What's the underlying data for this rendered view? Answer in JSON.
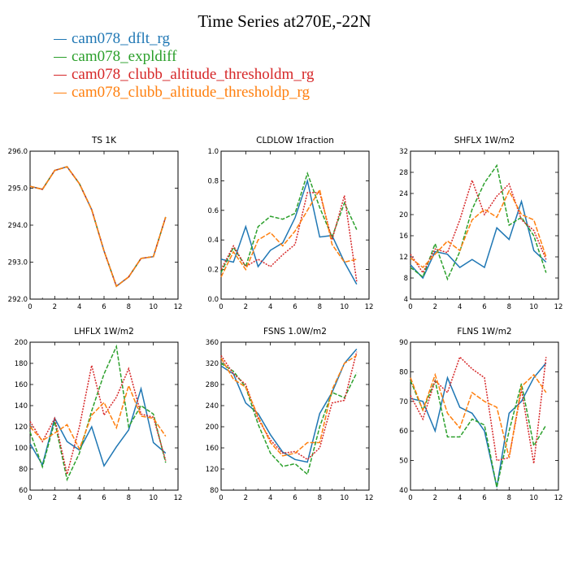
{
  "title": "Time Series at270E,-22N",
  "legend": [
    {
      "label": "cam078_dflt_rg",
      "color": "#1f77b4"
    },
    {
      "label": "cam078_expldiff",
      "color": "#2ca02c"
    },
    {
      "label": "cam078_clubb_altitude_thresholdm_rg",
      "color": "#d62728"
    },
    {
      "label": "cam078_clubb_altitude_thresholdp_rg",
      "color": "#ff7f0e"
    }
  ],
  "chart_data": [
    {
      "type": "line",
      "title": "TS   1K",
      "x": [
        0,
        1,
        2,
        3,
        4,
        5,
        6,
        7,
        8,
        9,
        10,
        11
      ],
      "xlim": [
        0,
        12
      ],
      "xticks": [
        0,
        2,
        4,
        6,
        8,
        10,
        12
      ],
      "ylim": [
        292.0,
        296.0
      ],
      "yticks": [
        292.0,
        293.0,
        294.0,
        295.0,
        296.0
      ],
      "ytick_labels": [
        "292.0",
        "293.0",
        "294.0",
        "295.0",
        "296.0"
      ],
      "series": [
        {
          "name": "cam078_dflt_rg",
          "values": [
            295.05,
            294.97,
            295.48,
            295.58,
            295.12,
            294.42,
            293.3,
            292.35,
            292.6,
            293.1,
            293.15,
            294.22
          ]
        },
        {
          "name": "cam078_expldiff",
          "values": [
            295.05,
            294.97,
            295.48,
            295.58,
            295.12,
            294.42,
            293.3,
            292.35,
            292.6,
            293.1,
            293.15,
            294.22
          ]
        },
        {
          "name": "cam078_clubb_altitude_thresholdm_rg",
          "values": [
            295.05,
            294.97,
            295.48,
            295.58,
            295.12,
            294.42,
            293.3,
            292.35,
            292.6,
            293.1,
            293.15,
            294.22
          ]
        },
        {
          "name": "cam078_clubb_altitude_thresholdp_rg",
          "values": [
            295.05,
            294.97,
            295.48,
            295.58,
            295.12,
            294.42,
            293.3,
            292.35,
            292.6,
            293.1,
            293.15,
            294.22
          ]
        }
      ]
    },
    {
      "type": "line",
      "title": "CLDLOW   1fraction",
      "x": [
        0,
        1,
        2,
        3,
        4,
        5,
        6,
        7,
        8,
        9,
        10,
        11
      ],
      "xlim": [
        0,
        12
      ],
      "xticks": [
        0,
        2,
        4,
        6,
        8,
        10,
        12
      ],
      "ylim": [
        0.0,
        1.0
      ],
      "yticks": [
        0.0,
        0.2,
        0.4,
        0.6,
        0.8,
        1.0
      ],
      "ytick_labels": [
        "0.0",
        "0.2",
        "0.4",
        "0.6",
        "0.8",
        "1.0"
      ],
      "series": [
        {
          "name": "cam078_dflt_rg",
          "values": [
            0.27,
            0.25,
            0.49,
            0.22,
            0.33,
            0.38,
            0.55,
            0.8,
            0.42,
            0.43,
            0.25,
            0.1
          ]
        },
        {
          "name": "cam078_expldiff",
          "values": [
            0.18,
            0.35,
            0.22,
            0.49,
            0.56,
            0.54,
            0.58,
            0.85,
            0.62,
            0.42,
            0.65,
            0.47
          ]
        },
        {
          "name": "cam078_clubb_altitude_thresholdm_rg",
          "values": [
            0.2,
            0.36,
            0.22,
            0.27,
            0.22,
            0.3,
            0.37,
            0.72,
            0.72,
            0.4,
            0.7,
            0.12
          ]
        },
        {
          "name": "cam078_clubb_altitude_thresholdp_rg",
          "values": [
            0.15,
            0.32,
            0.2,
            0.4,
            0.45,
            0.36,
            0.46,
            0.6,
            0.74,
            0.37,
            0.25,
            0.27
          ]
        }
      ]
    },
    {
      "type": "line",
      "title": "SHFLX   1W/m2",
      "x": [
        0,
        1,
        2,
        3,
        4,
        5,
        6,
        7,
        8,
        9,
        10,
        11
      ],
      "xlim": [
        0,
        12
      ],
      "xticks": [
        0,
        2,
        4,
        6,
        8,
        10,
        12
      ],
      "ylim": [
        4,
        32
      ],
      "yticks": [
        4,
        8,
        12,
        16,
        20,
        24,
        28,
        32
      ],
      "ytick_labels": [
        "4",
        "8",
        "12",
        "16",
        "20",
        "24",
        "28",
        "32"
      ],
      "series": [
        {
          "name": "cam078_dflt_rg",
          "values": [
            10.5,
            8,
            13,
            12.5,
            10,
            11.5,
            10,
            17.5,
            15.3,
            22.5,
            13.2,
            11
          ]
        },
        {
          "name": "cam078_expldiff",
          "values": [
            10,
            8.2,
            14.5,
            7.8,
            13,
            21,
            26,
            29.3,
            18,
            19.5,
            16,
            9
          ]
        },
        {
          "name": "cam078_clubb_altitude_thresholdm_rg",
          "values": [
            12.5,
            9,
            13.5,
            12.8,
            19,
            26.5,
            20,
            23.5,
            25.8,
            19,
            17,
            11.5
          ]
        },
        {
          "name": "cam078_clubb_altitude_thresholdp_rg",
          "values": [
            11.8,
            10,
            12.5,
            15,
            13.2,
            19,
            21,
            19.5,
            24.5,
            20,
            19,
            12
          ]
        }
      ]
    },
    {
      "type": "line",
      "title": "LHFLX   1W/m2",
      "x": [
        0,
        1,
        2,
        3,
        4,
        5,
        6,
        7,
        8,
        9,
        10,
        11
      ],
      "xlim": [
        0,
        12
      ],
      "xticks": [
        0,
        2,
        4,
        6,
        8,
        10,
        12
      ],
      "ylim": [
        60,
        200
      ],
      "yticks": [
        60,
        80,
        100,
        120,
        140,
        160,
        180,
        200
      ],
      "ytick_labels": [
        "60",
        "80",
        "100",
        "120",
        "140",
        "160",
        "180",
        "200"
      ],
      "series": [
        {
          "name": "cam078_dflt_rg",
          "values": [
            104,
            84,
            128,
            106,
            98,
            120,
            83,
            101,
            117,
            156,
            105,
            95
          ]
        },
        {
          "name": "cam078_expldiff",
          "values": [
            115,
            82,
            125,
            70,
            95,
            135,
            170,
            196,
            120,
            140,
            132,
            86
          ]
        },
        {
          "name": "cam078_clubb_altitude_thresholdm_rg",
          "values": [
            125,
            106,
            128,
            75,
            120,
            178,
            131,
            148,
            175,
            132,
            129,
            88
          ]
        },
        {
          "name": "cam078_clubb_altitude_thresholdp_rg",
          "values": [
            120,
            107,
            114,
            122,
            99,
            131,
            143,
            119,
            159,
            130,
            128,
            111
          ]
        }
      ]
    },
    {
      "type": "line",
      "title": "FSNS   1.0W/m2",
      "x": [
        0,
        1,
        2,
        3,
        4,
        5,
        6,
        7,
        8,
        9,
        10,
        11
      ],
      "xlim": [
        0,
        12
      ],
      "xticks": [
        0,
        2,
        4,
        6,
        8,
        10,
        12
      ],
      "ylim": [
        80,
        360
      ],
      "yticks": [
        80,
        120,
        160,
        200,
        240,
        280,
        320,
        360
      ],
      "ytick_labels": [
        "80",
        "120",
        "160",
        "200",
        "240",
        "280",
        "320",
        "360"
      ],
      "series": [
        {
          "name": "cam078_dflt_rg",
          "values": [
            315,
            300,
            245,
            225,
            185,
            152,
            138,
            133,
            225,
            265,
            320,
            347
          ]
        },
        {
          "name": "cam078_expldiff",
          "values": [
            320,
            305,
            275,
            205,
            150,
            125,
            130,
            110,
            200,
            265,
            255,
            302
          ]
        },
        {
          "name": "cam078_clubb_altitude_thresholdm_rg",
          "values": [
            335,
            300,
            280,
            215,
            175,
            150,
            153,
            138,
            160,
            245,
            250,
            342
          ]
        },
        {
          "name": "cam078_clubb_altitude_thresholdp_rg",
          "values": [
            330,
            290,
            275,
            220,
            170,
            145,
            150,
            170,
            170,
            270,
            320,
            335
          ]
        }
      ]
    },
    {
      "type": "line",
      "title": "FLNS   1W/m2",
      "x": [
        0,
        1,
        2,
        3,
        4,
        5,
        6,
        7,
        8,
        9,
        10,
        11
      ],
      "xlim": [
        0,
        12
      ],
      "xticks": [
        0,
        2,
        4,
        6,
        8,
        10,
        12
      ],
      "ylim": [
        40,
        90
      ],
      "yticks": [
        40,
        50,
        60,
        70,
        80,
        90
      ],
      "ytick_labels": [
        "40",
        "50",
        "60",
        "70",
        "80",
        "90"
      ],
      "series": [
        {
          "name": "cam078_dflt_rg",
          "values": [
            71,
            70,
            60,
            78,
            68,
            66,
            60,
            41,
            66,
            70,
            78,
            83
          ]
        },
        {
          "name": "cam078_expldiff",
          "values": [
            77,
            67,
            77,
            58,
            58,
            64,
            62,
            41,
            60,
            76,
            55,
            62
          ]
        },
        {
          "name": "cam078_clubb_altitude_thresholdm_rg",
          "values": [
            72,
            64,
            77,
            73,
            85,
            81,
            78,
            50,
            51,
            74,
            49,
            85
          ]
        },
        {
          "name": "cam078_clubb_altitude_thresholdp_rg",
          "values": [
            78,
            67,
            79,
            66,
            61,
            73,
            70,
            68,
            51,
            75,
            79,
            73
          ]
        }
      ]
    }
  ]
}
